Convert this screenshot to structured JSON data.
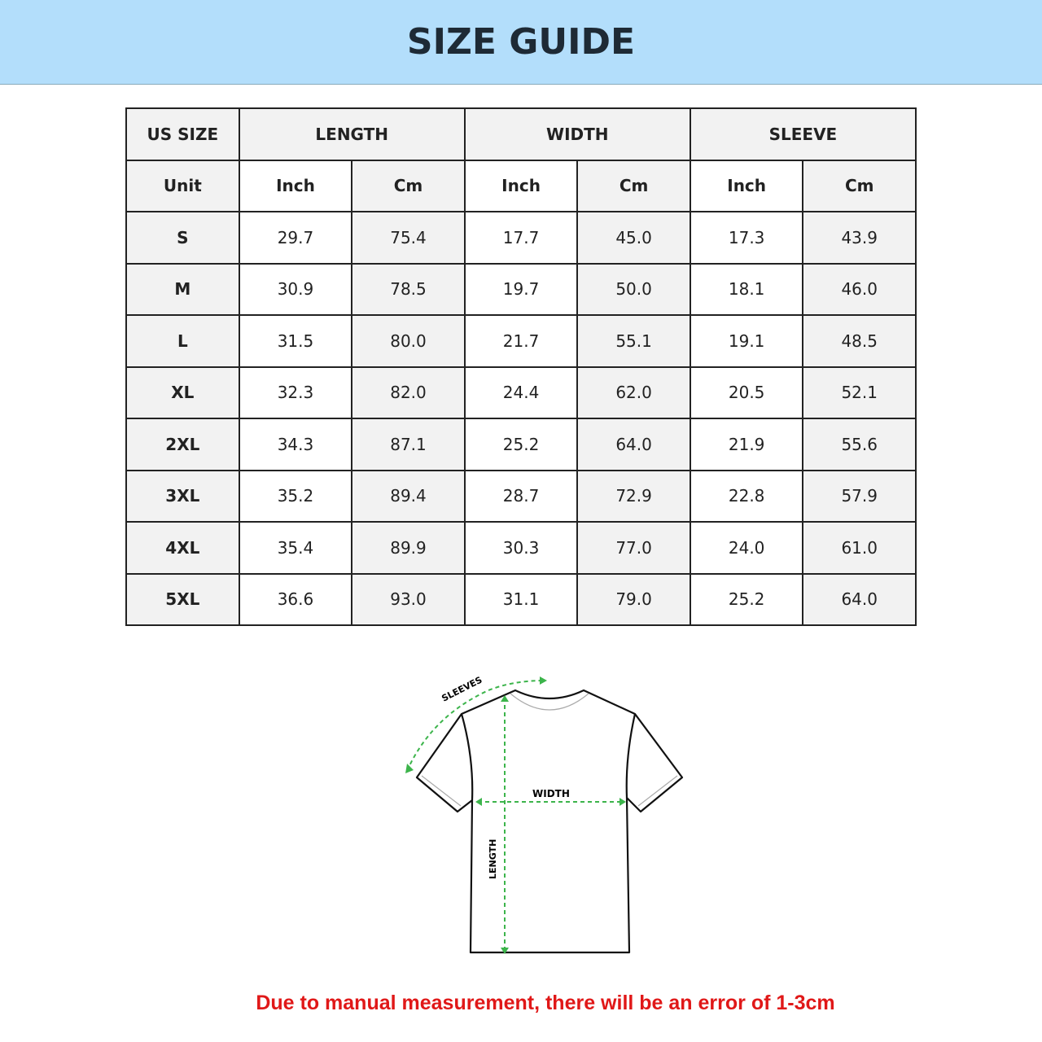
{
  "title": "SIZE GUIDE",
  "table": {
    "groups": [
      "US SIZE",
      "LENGTH",
      "WIDTH",
      "SLEEVE"
    ],
    "units": [
      "Unit",
      "Inch",
      "Cm",
      "Inch",
      "Cm",
      "Inch",
      "Cm"
    ],
    "rows": [
      [
        "S",
        "29.7",
        "75.4",
        "17.7",
        "45.0",
        "17.3",
        "43.9"
      ],
      [
        "M",
        "30.9",
        "78.5",
        "19.7",
        "50.0",
        "18.1",
        "46.0"
      ],
      [
        "L",
        "31.5",
        "80.0",
        "21.7",
        "55.1",
        "19.1",
        "48.5"
      ],
      [
        "XL",
        "32.3",
        "82.0",
        "24.4",
        "62.0",
        "20.5",
        "52.1"
      ],
      [
        "2XL",
        "34.3",
        "87.1",
        "25.2",
        "64.0",
        "21.9",
        "55.6"
      ],
      [
        "3XL",
        "35.2",
        "89.4",
        "28.7",
        "72.9",
        "22.8",
        "57.9"
      ],
      [
        "4XL",
        "35.4",
        "89.9",
        "30.3",
        "77.0",
        "24.0",
        "61.0"
      ],
      [
        "5XL",
        "36.6",
        "93.0",
        "31.1",
        "79.0",
        "25.2",
        "64.0"
      ]
    ]
  },
  "diagram": {
    "sleeves": "SLEEVES",
    "width": "WIDTH",
    "length": "LENGTH"
  },
  "note": "Due to manual measurement, there will be an error of 1-3cm",
  "colors": {
    "banner": "#b3defb",
    "arrow": "#3cb44b",
    "note": "#e01818"
  }
}
